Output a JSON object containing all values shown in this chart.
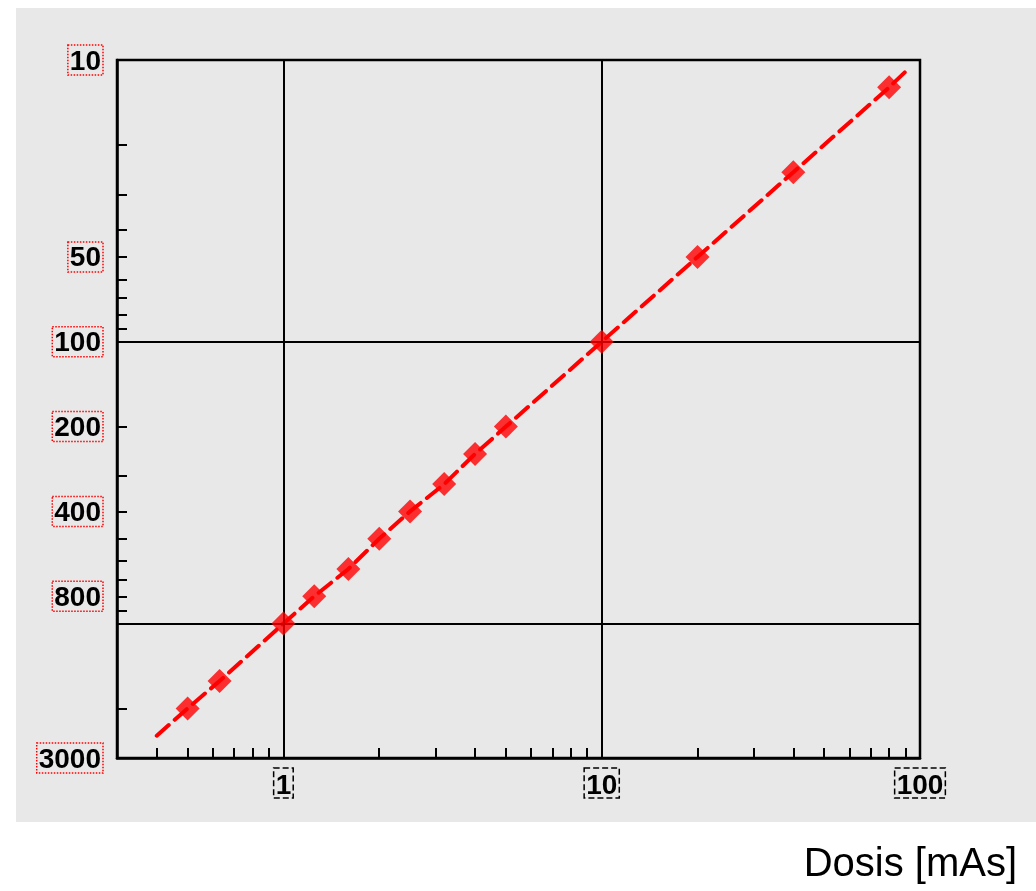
{
  "chart_data": {
    "type": "scatter",
    "xlabel": "Dosis [mAs]",
    "log": "xy",
    "grid": true,
    "marker": "diamond",
    "xlim": [
      0.3,
      100
    ],
    "ylim": [
      3000,
      10
    ],
    "xticks": [
      {
        "value": 0.4,
        "label": null
      },
      {
        "value": 0.5,
        "label": null
      },
      {
        "value": 0.6,
        "label": null
      },
      {
        "value": 0.7,
        "label": null
      },
      {
        "value": 0.8,
        "label": null
      },
      {
        "value": 0.9,
        "label": null
      },
      1,
      {
        "value": 2,
        "label": null
      },
      {
        "value": 3,
        "label": null
      },
      {
        "value": 4,
        "label": null
      },
      {
        "value": 5,
        "label": null
      },
      {
        "value": 6,
        "label": null
      },
      {
        "value": 7,
        "label": null
      },
      {
        "value": 8,
        "label": null
      },
      {
        "value": 9,
        "label": null
      },
      10,
      {
        "value": 20,
        "label": null
      },
      {
        "value": 30,
        "label": null
      },
      {
        "value": 40,
        "label": null
      },
      {
        "value": 50,
        "label": null
      },
      {
        "value": 60,
        "label": null
      },
      {
        "value": 70,
        "label": null
      },
      {
        "value": 80,
        "label": null
      },
      {
        "value": 90,
        "label": null
      },
      100
    ],
    "yticks": [
      10,
      {
        "value": 20,
        "label": null
      },
      {
        "value": 30,
        "label": null
      },
      {
        "value": 40,
        "label": null
      },
      50,
      {
        "value": 60,
        "label": null
      },
      {
        "value": 70,
        "label": null
      },
      {
        "value": 80,
        "label": null
      },
      {
        "value": 90,
        "label": null
      },
      100,
      200,
      {
        "value": 300,
        "label": null
      },
      400,
      {
        "value": 500,
        "label": null
      },
      {
        "value": 600,
        "label": null
      },
      {
        "value": 700,
        "label": null
      },
      800,
      {
        "value": 900,
        "label": null
      },
      {
        "value": 1000,
        "label": null
      },
      {
        "value": 2000,
        "label": null
      },
      3000
    ],
    "series": [
      {
        "type": "line",
        "color": "#ff0000",
        "line_style": "dashed",
        "marker": "none",
        "x": [
          0.4,
          0.5,
          0.63,
          1,
          1.25,
          1.6,
          2,
          2.5,
          3.2,
          4,
          5,
          10,
          20,
          40,
          80,
          90
        ],
        "values": [
          2500,
          2000,
          1600,
          1000,
          800,
          640,
          500,
          400,
          320,
          250,
          200,
          100,
          50,
          25,
          12.5,
          11
        ]
      },
      {
        "color": "#ff0000",
        "x": [
          0.5,
          0.63,
          1,
          1.25,
          1.6,
          2,
          2.5,
          3.2,
          4,
          5,
          10,
          20,
          40,
          80
        ],
        "values": [
          2000,
          1600,
          1000,
          800,
          640,
          500,
          400,
          320,
          250,
          200,
          100,
          50,
          25,
          12.5
        ]
      }
    ]
  }
}
